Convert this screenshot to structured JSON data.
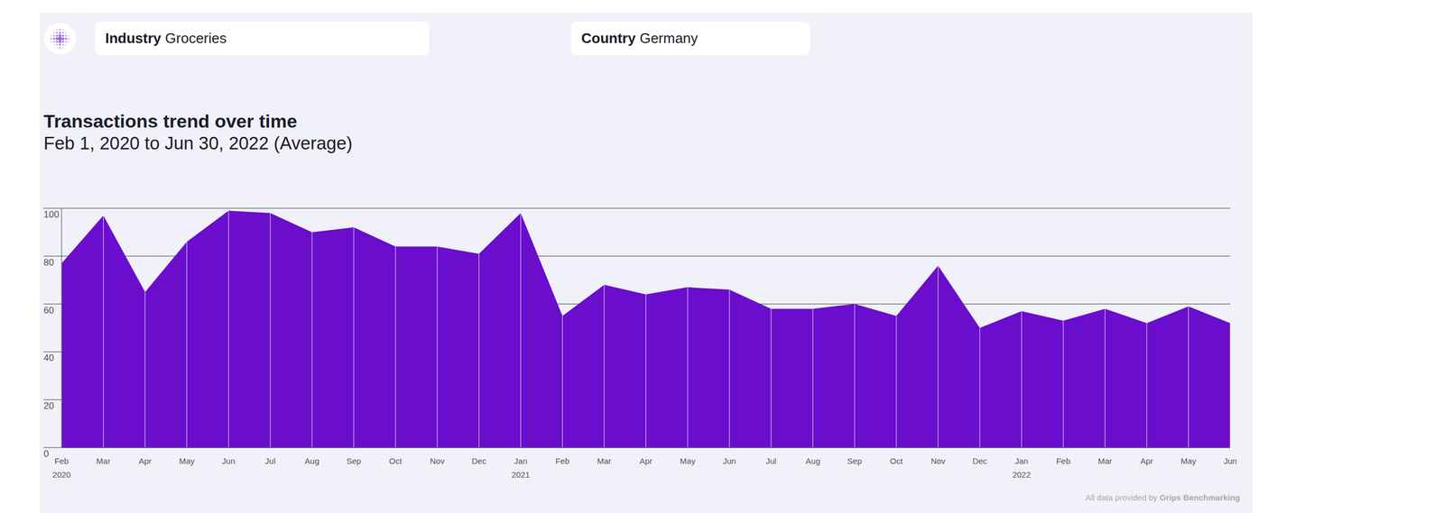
{
  "chart_data": {
    "type": "area",
    "title": "Transactions trend over time",
    "subtitle": "Feb 1, 2020 to Jun 30, 2022 (Average)",
    "filters": [
      {
        "label": "Industry",
        "value": "Groceries"
      },
      {
        "label": "Country",
        "value": "Germany"
      }
    ],
    "source": {
      "text": "All data provided by",
      "name": "Grips Benchmarking"
    },
    "categories": [
      "Feb 2020",
      "Mar",
      "Apr",
      "May",
      "Jun",
      "Jul",
      "Aug",
      "Sep",
      "Oct",
      "Nov",
      "Dec",
      "Jan 2021",
      "Feb",
      "Mar",
      "Apr",
      "May",
      "Jun",
      "Jul",
      "Aug",
      "Sep",
      "Oct",
      "Nov",
      "Dec",
      "Jan 2022",
      "Feb",
      "Mar",
      "Apr",
      "May",
      "Jun"
    ],
    "values": [
      77,
      97,
      65,
      86,
      99,
      98,
      90,
      92,
      84,
      84,
      81,
      98,
      55,
      68,
      64,
      67,
      66,
      58,
      58,
      60,
      55,
      76,
      50,
      57,
      53,
      58,
      52,
      59,
      52
    ],
    "color": "#6a0dcd",
    "ylim": [
      0,
      100
    ],
    "yticks": [
      0,
      20,
      40,
      60,
      80,
      100
    ],
    "grid": true
  }
}
